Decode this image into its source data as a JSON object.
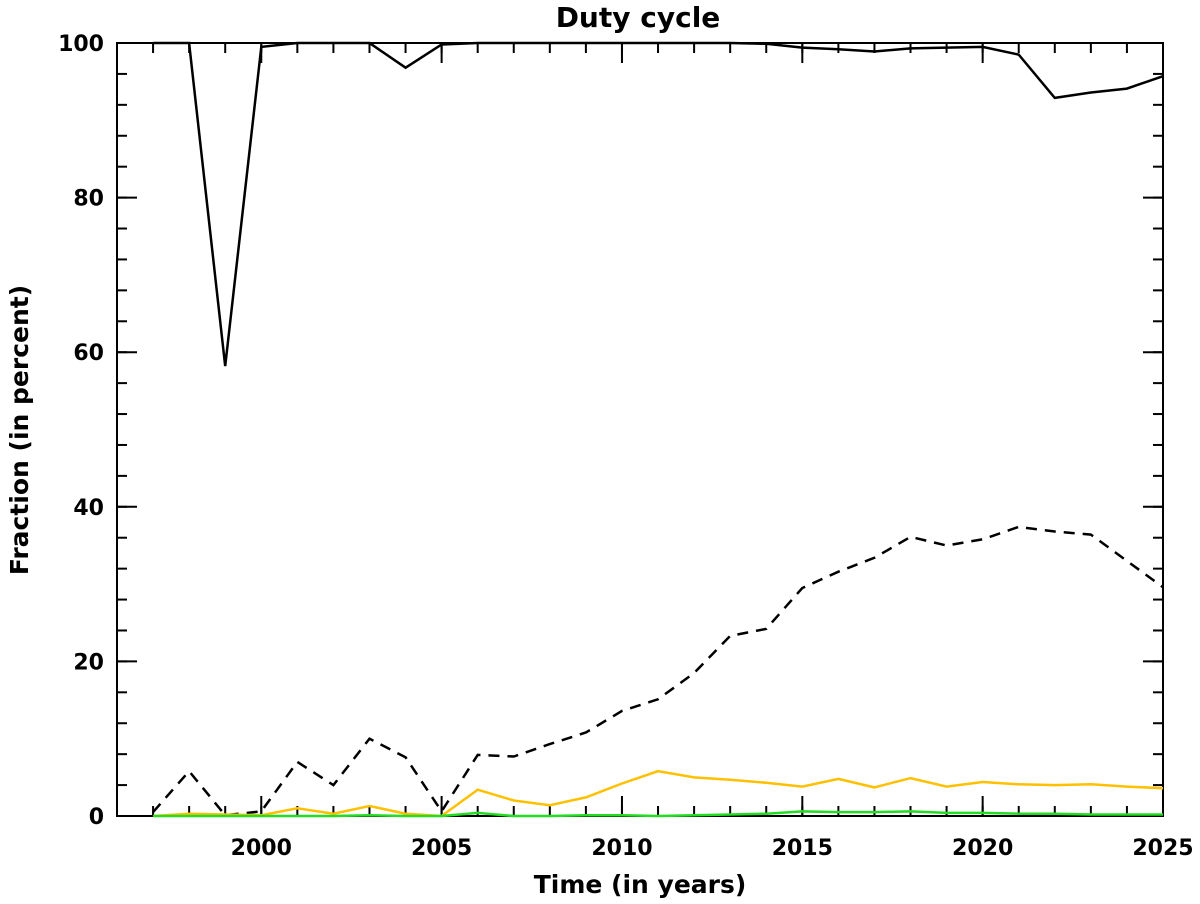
{
  "chart_data": {
    "type": "line",
    "title": "Duty cycle",
    "xlabel": "Time (in years)",
    "ylabel": "Fraction (in percent)",
    "xlim": [
      1996.0,
      2025.0
    ],
    "ylim": [
      0,
      100
    ],
    "x_ticks": [
      2000,
      2005,
      2010,
      2015,
      2020,
      2025
    ],
    "x_tick_labels": [
      "2000",
      "2005",
      "2010",
      "2015",
      "2020",
      "2025"
    ],
    "x_minor_step": 1,
    "y_ticks": [
      0,
      20,
      40,
      60,
      80,
      100
    ],
    "y_tick_labels": [
      "0",
      "20",
      "40",
      "60",
      "80",
      "100"
    ],
    "y_minor_step": 4,
    "grid": false,
    "legend": "none",
    "x": [
      1997,
      1998,
      1999,
      2000,
      2001,
      2002,
      2003,
      2004,
      2005,
      2006,
      2007,
      2008,
      2009,
      2010,
      2011,
      2012,
      2013,
      2014,
      2015,
      2016,
      2017,
      2018,
      2019,
      2020,
      2021,
      2022,
      2023,
      2024,
      2025
    ],
    "series": [
      {
        "style": "solid",
        "color": "#000000",
        "values": [
          100,
          100,
          58.2,
          99.5,
          100,
          100,
          100,
          96.8,
          99.8,
          100,
          100,
          100,
          100,
          100,
          100,
          100,
          100,
          99.9,
          99.4,
          99.2,
          98.9,
          99.3,
          99.4,
          99.5,
          98.5,
          92.9,
          93.6,
          94.1,
          95.7
        ]
      },
      {
        "style": "dashed",
        "color": "#000000",
        "values": [
          0.5,
          5.8,
          0.1,
          0.6,
          7.0,
          4.0,
          10.0,
          7.6,
          0.6,
          7.9,
          7.7,
          9.3,
          10.8,
          13.6,
          15.1,
          18.5,
          23.3,
          24.2,
          29.5,
          31.6,
          33.4,
          36.1,
          35.0,
          35.8,
          37.4,
          36.8,
          36.4,
          33.0,
          29.6
        ]
      },
      {
        "style": "solid",
        "color": "#ffc000",
        "values": [
          0.0,
          0.3,
          0.2,
          0.1,
          1.0,
          0.3,
          1.3,
          0.3,
          0.0,
          3.4,
          2.0,
          1.4,
          2.4,
          4.2,
          5.8,
          5.0,
          4.7,
          4.3,
          3.8,
          4.8,
          3.7,
          4.9,
          3.8,
          4.4,
          4.1,
          4.0,
          4.1,
          3.8,
          3.6
        ]
      },
      {
        "style": "solid",
        "color": "#22dd22",
        "values": [
          0.0,
          0.0,
          0.0,
          0.0,
          0.0,
          0.0,
          0.1,
          0.0,
          0.0,
          0.4,
          0.0,
          0.0,
          0.1,
          0.1,
          0.0,
          0.1,
          0.2,
          0.3,
          0.6,
          0.5,
          0.5,
          0.6,
          0.4,
          0.4,
          0.3,
          0.3,
          0.2,
          0.2,
          0.2
        ]
      }
    ]
  }
}
